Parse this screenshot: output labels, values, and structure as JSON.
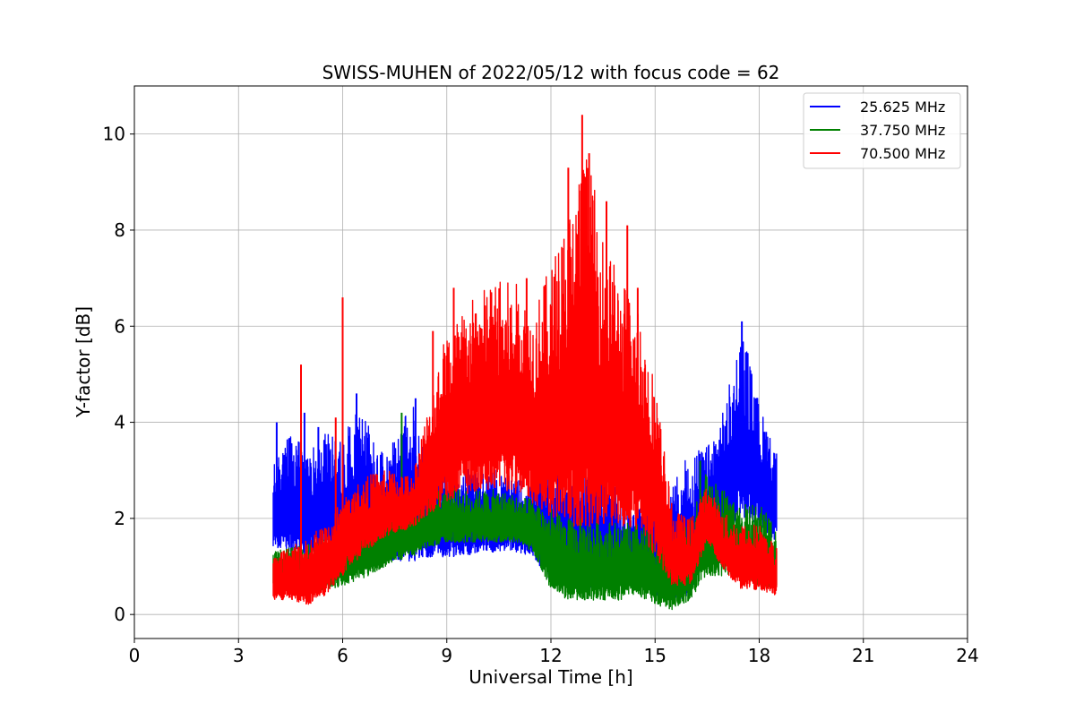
{
  "chart_data": {
    "type": "line",
    "title": "SWISS-MUHEN of 2022/05/12 with focus code = 62",
    "xlabel": "Universal Time [h]",
    "ylabel": "Y-factor [dB]",
    "xlim": [
      0,
      24
    ],
    "ylim": [
      -0.5,
      11
    ],
    "xticks": [
      0,
      3,
      6,
      9,
      12,
      15,
      18,
      21,
      24
    ],
    "xtick_labels": [
      "0",
      "3",
      "6",
      "9",
      "12",
      "15",
      "18",
      "21",
      "24"
    ],
    "yticks": [
      0,
      2,
      4,
      6,
      8,
      10
    ],
    "ytick_labels": [
      "0",
      "2",
      "4",
      "6",
      "8",
      "10"
    ],
    "grid": true,
    "legend_position": "top-right",
    "x_range_of_data": [
      4.0,
      18.5
    ],
    "series": [
      {
        "name": "25.625 MHz",
        "color": "#0000ff",
        "x": [
          4.0,
          4.5,
          5.0,
          5.5,
          6.0,
          6.5,
          7.0,
          7.5,
          8.0,
          8.5,
          9.0,
          9.5,
          10.0,
          10.5,
          11.0,
          11.5,
          12.0,
          12.5,
          13.0,
          13.5,
          14.0,
          14.5,
          15.0,
          15.5,
          16.0,
          16.5,
          17.0,
          17.5,
          18.0,
          18.5
        ],
        "lower": [
          1.4,
          1.3,
          1.2,
          1.3,
          1.3,
          1.2,
          1.2,
          1.1,
          1.1,
          1.2,
          1.2,
          1.2,
          1.3,
          1.3,
          1.3,
          1.2,
          0.6,
          0.5,
          0.5,
          0.6,
          0.6,
          0.6,
          0.4,
          0.3,
          0.3,
          1.3,
          1.8,
          2.0,
          1.8,
          1.5
        ],
        "upper": [
          3.1,
          3.8,
          3.4,
          3.8,
          3.6,
          4.6,
          3.4,
          3.6,
          4.5,
          3.0,
          3.1,
          3.0,
          3.1,
          3.0,
          2.8,
          2.9,
          3.2,
          3.1,
          3.3,
          3.2,
          2.6,
          2.5,
          2.9,
          2.7,
          3.4,
          3.5,
          4.3,
          6.1,
          4.4,
          3.4
        ],
        "peaks": [
          [
            4.1,
            4.0
          ],
          [
            4.9,
            4.2
          ],
          [
            5.3,
            3.9
          ],
          [
            6.4,
            4.6
          ],
          [
            8.1,
            4.5
          ],
          [
            17.5,
            6.1
          ],
          [
            17.9,
            4.5
          ],
          [
            18.2,
            3.8
          ]
        ]
      },
      {
        "name": "37.750 MHz",
        "color": "#008000",
        "x": [
          4.0,
          4.5,
          5.0,
          5.5,
          6.0,
          6.5,
          7.0,
          7.5,
          8.0,
          8.5,
          9.0,
          9.5,
          10.0,
          10.5,
          11.0,
          11.5,
          12.0,
          12.5,
          13.0,
          13.5,
          14.0,
          14.5,
          15.0,
          15.5,
          16.0,
          16.5,
          17.0,
          17.5,
          18.0,
          18.5
        ],
        "lower": [
          0.5,
          0.5,
          0.4,
          0.5,
          0.6,
          0.7,
          0.9,
          1.1,
          1.2,
          1.4,
          1.5,
          1.5,
          1.5,
          1.5,
          1.5,
          1.3,
          0.5,
          0.3,
          0.3,
          0.3,
          0.3,
          0.4,
          0.2,
          0.1,
          0.3,
          0.8,
          0.8,
          0.8,
          0.6,
          0.5
        ],
        "upper": [
          1.3,
          1.4,
          1.5,
          1.6,
          1.7,
          1.9,
          2.0,
          2.3,
          2.4,
          2.5,
          2.7,
          2.6,
          2.6,
          2.6,
          2.5,
          2.4,
          2.2,
          2.0,
          2.0,
          2.0,
          1.9,
          1.9,
          1.7,
          1.6,
          2.0,
          3.0,
          2.6,
          2.3,
          2.3,
          2.0
        ],
        "peaks": [
          [
            7.7,
            4.2
          ],
          [
            16.3,
            3.2
          ]
        ]
      },
      {
        "name": "70.500 MHz",
        "color": "#ff0000",
        "x": [
          4.0,
          4.5,
          5.0,
          5.5,
          6.0,
          6.5,
          7.0,
          7.5,
          8.0,
          8.5,
          9.0,
          9.5,
          10.0,
          10.5,
          11.0,
          11.5,
          12.0,
          12.5,
          13.0,
          13.5,
          14.0,
          14.5,
          15.0,
          15.5,
          16.0,
          16.5,
          17.0,
          17.5,
          18.0,
          18.5
        ],
        "lower": [
          0.3,
          0.3,
          0.2,
          0.4,
          0.8,
          1.2,
          1.5,
          1.7,
          1.8,
          2.1,
          2.3,
          2.5,
          2.6,
          2.6,
          2.5,
          2.3,
          2.0,
          1.8,
          1.8,
          1.9,
          1.8,
          1.7,
          1.2,
          0.6,
          0.6,
          1.5,
          0.9,
          0.5,
          0.5,
          0.4
        ],
        "upper": [
          1.2,
          1.4,
          1.6,
          1.9,
          2.4,
          2.8,
          3.0,
          3.0,
          2.9,
          4.5,
          6.0,
          6.4,
          6.8,
          7.0,
          6.9,
          6.4,
          7.3,
          8.5,
          9.8,
          8.0,
          7.0,
          6.6,
          4.9,
          2.2,
          2.0,
          2.7,
          2.1,
          1.9,
          1.9,
          1.4
        ],
        "peaks": [
          [
            4.8,
            5.2
          ],
          [
            5.8,
            4.1
          ],
          [
            6.0,
            6.6
          ],
          [
            8.6,
            5.9
          ],
          [
            9.2,
            6.8
          ],
          [
            11.3,
            7.0
          ],
          [
            12.5,
            9.3
          ],
          [
            12.9,
            10.4
          ],
          [
            13.1,
            9.6
          ],
          [
            13.6,
            8.6
          ],
          [
            14.2,
            8.1
          ],
          [
            14.5,
            6.8
          ]
        ]
      }
    ]
  }
}
